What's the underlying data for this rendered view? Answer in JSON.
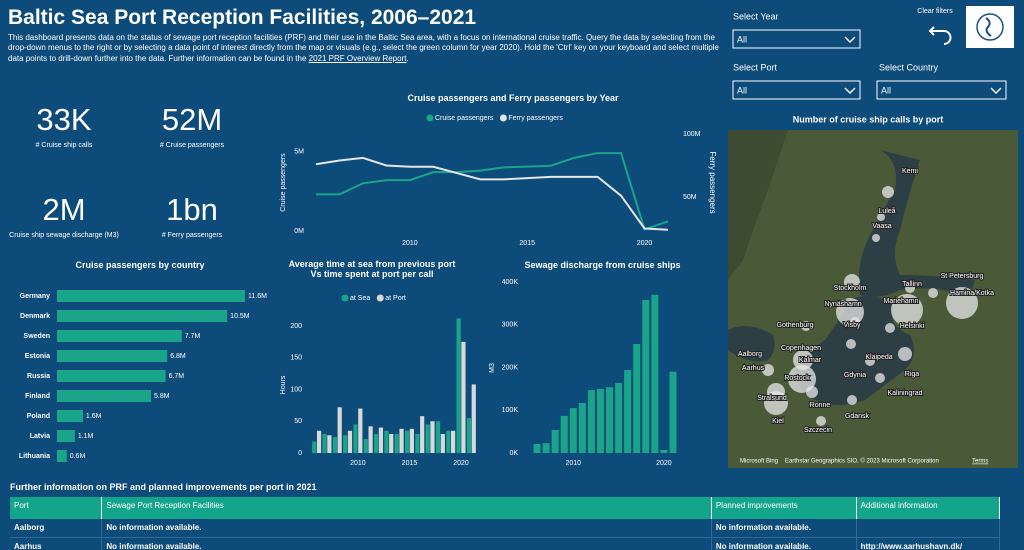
{
  "header": {
    "title": "Baltic Sea Port Reception Facilities, 2006–2021",
    "description": "This dashboard presents data on the status of sewage port reception facilities (PRF) and their use in the Baltic Sea area, with a focus on international cruise traffic. Query the data by selecting from the drop-down menus to the right or by selecting a data point of interest directly from the map or visuals (e.g., select the green column for year 2020). Hold the 'Ctrl' key on your keyboard and select multiple data points to drill-down further into the data. Further information can be found in the",
    "report_link": "2021 PRF Overview Report",
    "description_end": "."
  },
  "filters": {
    "year": {
      "label": "Select Year",
      "value": "All"
    },
    "port": {
      "label": "Select Port",
      "value": "All"
    },
    "country": {
      "label": "Select Country",
      "value": "All"
    },
    "clear": "Clear filters"
  },
  "kpis": [
    {
      "value": "33K",
      "label": "# Cruise ship calls"
    },
    {
      "value": "52M",
      "label": "# Cruise passengers"
    },
    {
      "value": "2M",
      "label": "Cruise ship sewage discharge (M3)"
    },
    {
      "value": "1bn",
      "label": "# Ferry passengers"
    }
  ],
  "chart_data": [
    {
      "type": "line",
      "title": "Cruise passengers and Ferry passengers by Year",
      "x": [
        2006,
        2007,
        2008,
        2009,
        2010,
        2011,
        2012,
        2013,
        2014,
        2015,
        2016,
        2017,
        2018,
        2019,
        2020,
        2021
      ],
      "xlim": [
        2006,
        2021
      ],
      "xticks": [
        2010,
        2015,
        2020
      ],
      "ylim": [
        0,
        6100000
      ],
      "yticks": [
        {
          "value": 0,
          "label": "0M"
        },
        {
          "value": 5000000,
          "label": "5M"
        }
      ],
      "y2lim": [
        23000000,
        100000000
      ],
      "y2ticks": [
        {
          "value": 50000000,
          "label": "50M"
        },
        {
          "value": 100000000,
          "label": "100M"
        }
      ],
      "ylabel": "Cruise passengers",
      "y2label": "Ferry passengers",
      "series": [
        {
          "name": "Cruise passengers",
          "color": "#1aa58a",
          "values": [
            2300000,
            2300000,
            3000000,
            3200000,
            3200000,
            3700000,
            3700000,
            3800000,
            4000000,
            4050000,
            4100000,
            4600000,
            4900000,
            4900000,
            100000,
            600000
          ]
        },
        {
          "name": "Ferry passengers",
          "color": "#e6e6e6",
          "axis": "y2",
          "values": [
            76000000,
            79000000,
            81000000,
            75000000,
            74000000,
            74000000,
            69000000,
            64000000,
            64000000,
            65000000,
            66000000,
            66000000,
            66000000,
            51000000,
            25000000,
            24000000
          ]
        }
      ]
    },
    {
      "type": "bar",
      "orientation": "horizontal",
      "title": "Cruise passengers by country",
      "color": "#1aa58a",
      "categories": [
        "Germany",
        "Denmark",
        "Sweden",
        "Estonia",
        "Russia",
        "Finland",
        "Poland",
        "Latvia",
        "Lithuania"
      ],
      "values": [
        11600000,
        10500000,
        7700000,
        6800000,
        6700000,
        5800000,
        1600000,
        1100000,
        600000
      ],
      "value_labels": [
        "11.6M",
        "10.5M",
        "7.7M",
        "6.8M",
        "6.7M",
        "5.8M",
        "1.6M",
        "1.1M",
        "0.6M"
      ]
    },
    {
      "type": "bar",
      "title": "Average time at sea from previous port Vs time spent at port per call",
      "x": [
        2006,
        2007,
        2008,
        2009,
        2010,
        2011,
        2012,
        2013,
        2014,
        2015,
        2016,
        2017,
        2018,
        2019,
        2020,
        2021
      ],
      "xlim": [
        2005.5,
        2021.5
      ],
      "xticks": [
        2010,
        2015,
        2020
      ],
      "ylim": [
        0,
        240
      ],
      "yticks": [
        0,
        50,
        100,
        150,
        200
      ],
      "ylabel": "Hours",
      "series": [
        {
          "name": "at Sea",
          "color": "#1aa58a",
          "values": [
            18,
            30,
            25,
            28,
            45,
            22,
            30,
            35,
            30,
            35,
            30,
            45,
            50,
            35,
            212,
            55
          ]
        },
        {
          "name": "at Port",
          "color": "#d9d9d9",
          "values": [
            35,
            28,
            72,
            35,
            70,
            42,
            40,
            30,
            38,
            38,
            58,
            50,
            30,
            35,
            175,
            108
          ]
        }
      ]
    },
    {
      "type": "bar",
      "title": "Sewage discharge from cruise ships",
      "color": "#1aa58a",
      "x": [
        2006,
        2007,
        2008,
        2009,
        2010,
        2011,
        2012,
        2013,
        2014,
        2015,
        2016,
        2017,
        2018,
        2019,
        2020,
        2021
      ],
      "xlim": [
        2005.5,
        2021.5
      ],
      "xticks": [
        2010,
        2020
      ],
      "ylim": [
        0,
        410000
      ],
      "yticks": [
        {
          "value": 0,
          "label": "0K"
        },
        {
          "value": 100000,
          "label": "100K"
        },
        {
          "value": 200000,
          "label": "200K"
        },
        {
          "value": 300000,
          "label": "300K"
        },
        {
          "value": 400000,
          "label": "400K"
        }
      ],
      "ylabel": "M3",
      "values": [
        21000,
        23000,
        54000,
        87000,
        105000,
        117000,
        147000,
        150000,
        154000,
        164000,
        194000,
        255000,
        358000,
        370000,
        7000,
        190000
      ]
    }
  ],
  "map": {
    "title": "Number of cruise ship calls by port",
    "ports": [
      "Kemi",
      "Luleå",
      "Vaasa",
      "Stockholm",
      "Nynäshamn",
      "Tallinn",
      "St Petersburg",
      "Mariehamn",
      "Hamina/Kotka",
      "Visby",
      "Helsinki",
      "Gothenburg",
      "Copenhagen",
      "Kalmar",
      "Klaipeda",
      "Aalborg",
      "Aarhus",
      "Rostock",
      "Gdynia",
      "Riga",
      "Kaliningrad",
      "Stralsund",
      "Ronne",
      "Kiel",
      "Gdansk",
      "Szczecin"
    ],
    "provider": "Microsoft Bing",
    "attribution": "Earthstar Geographics SIO, © 2023 Microsoft Corporation",
    "terms": "Terms"
  },
  "table": {
    "title": "Further information on PRF and planned improvements per port in 2021",
    "columns": [
      "Port",
      "Sewage Port Reception Facilities",
      "Planned improvements",
      "Additional information"
    ],
    "rows": [
      [
        "Aalborg",
        "No information available.",
        "No information available."
      ],
      [
        "Aarhus",
        "No information available.",
        "No information available.",
        "http://www.aarhushavn.dk/"
      ]
    ]
  }
}
